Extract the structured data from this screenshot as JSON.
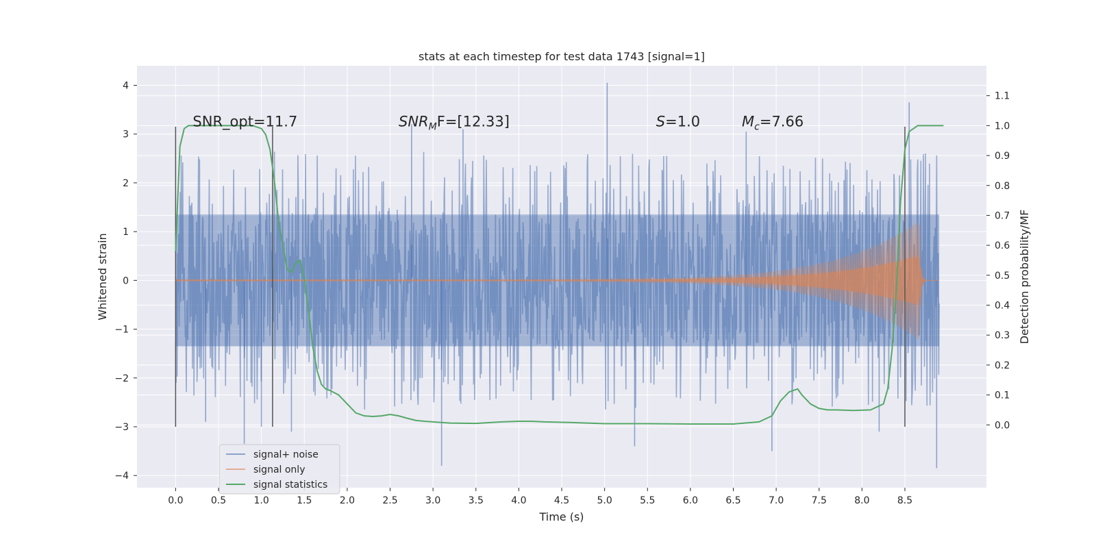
{
  "chart_data": {
    "type": "line",
    "title": "stats at each timestep for test data 1743 [signal=1]",
    "xlabel": "Time (s)",
    "ylabel": "Whitened strain",
    "y2label": "Detection probability/MF",
    "xlim": [
      -0.45,
      9.45
    ],
    "ylim": [
      -4.25,
      4.4
    ],
    "y2lim": [
      -0.21,
      1.2
    ],
    "xticks": [
      0.0,
      0.5,
      1.0,
      1.5,
      2.0,
      2.5,
      3.0,
      3.5,
      4.0,
      4.5,
      5.0,
      5.5,
      6.0,
      6.5,
      7.0,
      7.5,
      8.0,
      8.5
    ],
    "xtick_labels": [
      "0.0",
      "0.5",
      "1.0",
      "1.5",
      "2.0",
      "2.5",
      "3.0",
      "3.5",
      "4.0",
      "4.5",
      "5.0",
      "5.5",
      "6.0",
      "6.5",
      "7.0",
      "7.5",
      "8.0",
      "8.5"
    ],
    "yticks": [
      -4,
      -3,
      -2,
      -1,
      0,
      1,
      2,
      3,
      4
    ],
    "ytick_labels": [
      "−4",
      "−3",
      "−2",
      "−1",
      "0",
      "1",
      "2",
      "3",
      "4"
    ],
    "y2ticks": [
      0.0,
      0.1,
      0.2,
      0.3,
      0.4,
      0.5,
      0.6,
      0.7,
      0.8,
      0.9,
      1.0,
      1.1
    ],
    "y2tick_labels": [
      "0.0",
      "0.1",
      "0.2",
      "0.3",
      "0.4",
      "0.5",
      "0.6",
      "0.7",
      "0.8",
      "0.9",
      "1.0",
      "1.1"
    ],
    "grid": true,
    "legend_position": "lower-left",
    "series": [
      {
        "name": "signal+ noise",
        "color": "#4c72b0",
        "kind": "noise",
        "x_range": [
          0.0,
          8.9
        ],
        "core_amplitude": 1.35,
        "spikes": [
          {
            "x": 0.35,
            "y": -2.9
          },
          {
            "x": 0.8,
            "y": -3.35
          },
          {
            "x": 1.0,
            "y": -3.0
          },
          {
            "x": 1.35,
            "y": -3.1
          },
          {
            "x": 2.75,
            "y": 3.2
          },
          {
            "x": 3.1,
            "y": -3.8
          },
          {
            "x": 3.35,
            "y": 3.1
          },
          {
            "x": 5.03,
            "y": 4.05
          },
          {
            "x": 5.35,
            "y": -3.4
          },
          {
            "x": 6.65,
            "y": 3.05
          },
          {
            "x": 6.95,
            "y": -3.5
          },
          {
            "x": 8.55,
            "y": 3.65
          },
          {
            "x": 8.87,
            "y": -3.85
          },
          {
            "x": 8.2,
            "y": -3.1
          }
        ]
      },
      {
        "name": "signal only",
        "color": "#dd8452",
        "kind": "chirp",
        "x_range": [
          0.0,
          8.9
        ],
        "peak_time": 8.67,
        "amplitude_start": 0.02,
        "amplitude_peak": 1.22
      },
      {
        "name": "signal statistics",
        "color": "#55a868",
        "kind": "line",
        "axis": "right",
        "x": [
          0.0,
          0.05,
          0.1,
          0.15,
          0.2,
          0.3,
          0.5,
          0.7,
          0.9,
          1.0,
          1.05,
          1.1,
          1.15,
          1.2,
          1.25,
          1.3,
          1.35,
          1.4,
          1.45,
          1.5,
          1.55,
          1.6,
          1.65,
          1.7,
          1.75,
          1.8,
          1.9,
          2.0,
          2.1,
          2.2,
          2.3,
          2.4,
          2.5,
          2.6,
          2.7,
          2.8,
          2.9,
          3.0,
          3.2,
          3.5,
          3.8,
          4.0,
          4.15,
          4.3,
          4.6,
          5.0,
          5.5,
          6.0,
          6.5,
          6.8,
          6.95,
          7.05,
          7.15,
          7.25,
          7.3,
          7.4,
          7.5,
          7.6,
          7.7,
          7.9,
          8.1,
          8.25,
          8.3,
          8.35,
          8.4,
          8.45,
          8.5,
          8.55,
          8.6,
          8.65,
          8.75,
          8.95
        ],
        "values": [
          0.58,
          0.93,
          0.99,
          1.0,
          1.0,
          1.0,
          1.0,
          1.0,
          1.0,
          0.99,
          0.97,
          0.92,
          0.82,
          0.68,
          0.6,
          0.52,
          0.51,
          0.54,
          0.55,
          0.49,
          0.38,
          0.26,
          0.18,
          0.135,
          0.12,
          0.115,
          0.1,
          0.07,
          0.04,
          0.03,
          0.028,
          0.03,
          0.035,
          0.03,
          0.022,
          0.015,
          0.012,
          0.01,
          0.006,
          0.005,
          0.01,
          0.012,
          0.012,
          0.01,
          0.008,
          0.004,
          0.004,
          0.003,
          0.003,
          0.01,
          0.03,
          0.08,
          0.11,
          0.12,
          0.1,
          0.07,
          0.055,
          0.05,
          0.05,
          0.048,
          0.05,
          0.07,
          0.12,
          0.25,
          0.45,
          0.75,
          0.92,
          0.98,
          0.99,
          1.0,
          1.0,
          1.0
        ]
      }
    ],
    "vlines": [
      {
        "x": 0.0,
        "y_range": [
          -3.0,
          3.15
        ]
      },
      {
        "x": 1.13,
        "y_range": [
          -3.0,
          3.15
        ]
      },
      {
        "x": 8.5,
        "y_range": [
          -3.0,
          3.15
        ]
      }
    ],
    "annotations": [
      {
        "x": 0.2,
        "y": 3.2,
        "kind": "plain",
        "text": "SNR_opt=11.7"
      },
      {
        "x": 2.6,
        "y": 3.2,
        "kind": "math",
        "main": "SNR",
        "sub": "M",
        "rest": "F=[12.33]"
      },
      {
        "x": 5.6,
        "y": 3.2,
        "kind": "math",
        "main": "S",
        "sub": "",
        "rest": "=1.0"
      },
      {
        "x": 6.6,
        "y": 3.2,
        "kind": "math",
        "main": "M",
        "sub": "c",
        "rest": "=7.66"
      }
    ]
  }
}
